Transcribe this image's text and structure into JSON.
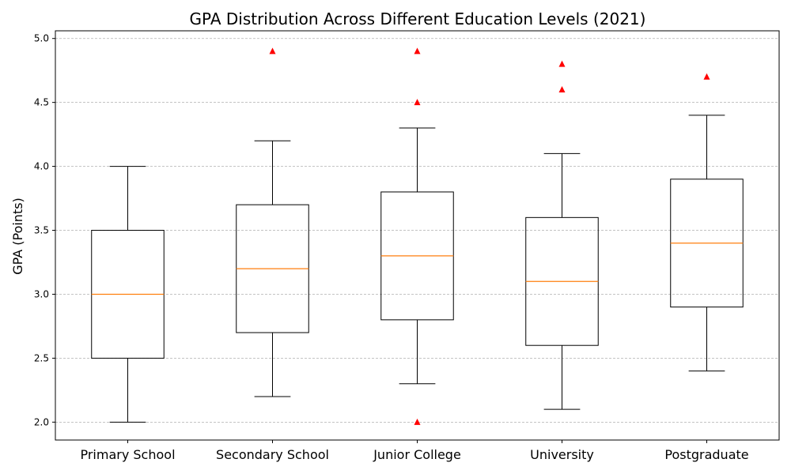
{
  "chart_data": {
    "type": "box",
    "title": "GPA Distribution Across Different Education Levels (2021)",
    "xlabel": "",
    "ylabel": "GPA (Points)",
    "ylim": [
      1.86,
      5.06
    ],
    "yticks": [
      2.0,
      2.5,
      3.0,
      3.5,
      4.0,
      4.5,
      5.0
    ],
    "ytick_labels": [
      "2.0",
      "2.5",
      "3.0",
      "3.5",
      "4.0",
      "4.5",
      "5.0"
    ],
    "grid": "horizontal dashed",
    "categories": [
      "Primary School",
      "Secondary School",
      "Junior College",
      "University",
      "Postgraduate"
    ],
    "boxes": [
      {
        "whisker_low": 2.0,
        "q1": 2.5,
        "median": 3.0,
        "q3": 3.5,
        "whisker_high": 4.0,
        "outliers": []
      },
      {
        "whisker_low": 2.2,
        "q1": 2.7,
        "median": 3.2,
        "q3": 3.7,
        "whisker_high": 4.2,
        "outliers": [
          4.9
        ]
      },
      {
        "whisker_low": 2.3,
        "q1": 2.8,
        "median": 3.3,
        "q3": 3.8,
        "whisker_high": 4.3,
        "outliers": [
          2.0,
          4.5,
          4.9
        ]
      },
      {
        "whisker_low": 2.1,
        "q1": 2.6,
        "median": 3.1,
        "q3": 3.6,
        "whisker_high": 4.1,
        "outliers": [
          4.6,
          4.8
        ]
      },
      {
        "whisker_low": 2.4,
        "q1": 2.9,
        "median": 3.4,
        "q3": 3.9,
        "whisker_high": 4.4,
        "outliers": [
          4.7
        ]
      }
    ],
    "colors": {
      "box": "#000000",
      "median": "#ff7f0e",
      "outlier": "#ff0000",
      "grid": "#b0b0b0"
    }
  }
}
